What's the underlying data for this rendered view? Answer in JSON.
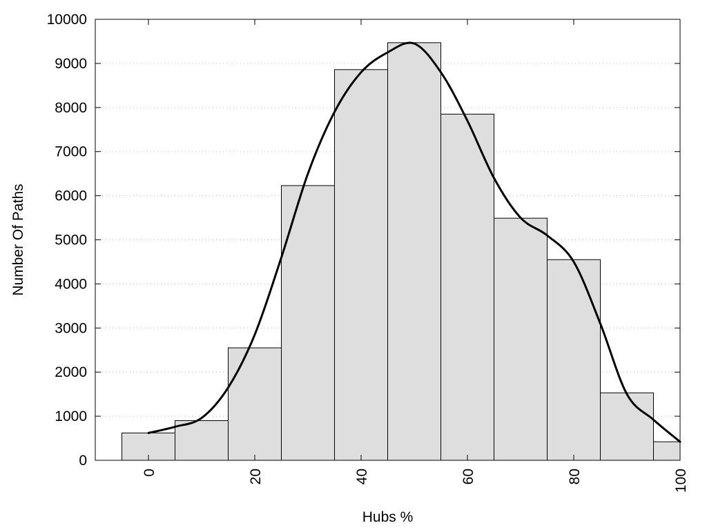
{
  "chart_data": {
    "type": "bar",
    "xlabel": "Hubs %",
    "ylabel": "Number Of Paths",
    "xlim": [
      -10,
      100
    ],
    "ylim": [
      0,
      10000
    ],
    "x_ticks": [
      0,
      20,
      40,
      60,
      80,
      100
    ],
    "y_ticks": [
      0,
      1000,
      2000,
      3000,
      4000,
      5000,
      6000,
      7000,
      8000,
      9000,
      10000
    ],
    "grid": "horizontal dotted",
    "bar_width": 10,
    "bars": [
      {
        "x": 0,
        "value": 620
      },
      {
        "x": 10,
        "value": 900
      },
      {
        "x": 20,
        "value": 2550
      },
      {
        "x": 30,
        "value": 6230
      },
      {
        "x": 40,
        "value": 8860
      },
      {
        "x": 50,
        "value": 9470
      },
      {
        "x": 60,
        "value": 7850
      },
      {
        "x": 70,
        "value": 5490
      },
      {
        "x": 80,
        "value": 4550
      },
      {
        "x": 90,
        "value": 1530
      },
      {
        "x": 100,
        "value": 420
      }
    ],
    "curve": {
      "x": [
        0,
        5,
        10,
        15,
        20,
        25,
        30,
        35,
        40,
        45,
        50,
        55,
        60,
        65,
        70,
        75,
        80,
        85,
        90,
        95,
        100
      ],
      "y": [
        620,
        760,
        960,
        1650,
        2850,
        4600,
        6500,
        7900,
        8800,
        9250,
        9450,
        8800,
        7700,
        6400,
        5500,
        5100,
        4500,
        3100,
        1500,
        920,
        420
      ]
    },
    "colors": {
      "bar_fill": "#dedede",
      "bar_stroke": "#000000",
      "curve": "#000000"
    }
  }
}
